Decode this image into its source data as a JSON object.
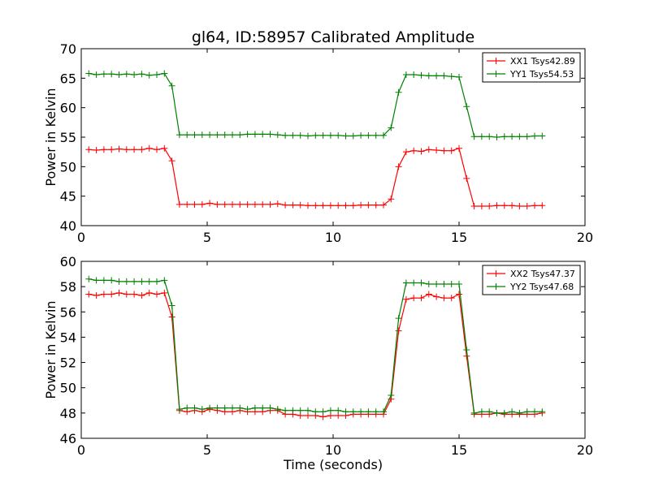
{
  "figure": {
    "title": "gl64, ID:58957 Calibrated Amplitude",
    "xlabel": "Time (seconds)"
  },
  "chart_data": [
    {
      "type": "line",
      "ylabel": "Power in Kelvin",
      "xlim": [
        0,
        20
      ],
      "ylim": [
        40,
        70
      ],
      "xticks": [
        0,
        5,
        10,
        15,
        20
      ],
      "yticks": [
        40,
        45,
        50,
        55,
        60,
        65,
        70
      ],
      "grid": false,
      "legend_position": "top-right",
      "x": [
        0.3,
        0.6,
        0.9,
        1.2,
        1.5,
        1.8,
        2.1,
        2.4,
        2.7,
        3.0,
        3.3,
        3.6,
        3.9,
        4.2,
        4.5,
        4.8,
        5.1,
        5.4,
        5.7,
        6.0,
        6.3,
        6.6,
        6.9,
        7.2,
        7.5,
        7.8,
        8.1,
        8.4,
        8.7,
        9.0,
        9.3,
        9.6,
        9.9,
        10.2,
        10.5,
        10.8,
        11.1,
        11.4,
        11.7,
        12.0,
        12.3,
        12.6,
        12.9,
        13.2,
        13.5,
        13.8,
        14.1,
        14.4,
        14.7,
        15.0,
        15.3,
        15.6,
        15.9,
        16.2,
        16.5,
        16.8,
        17.1,
        17.4,
        17.7,
        18.0,
        18.3
      ],
      "series": [
        {
          "name": "XX1 Tsys42.89",
          "color": "#ff0000",
          "values": [
            52.9,
            52.8,
            52.9,
            52.9,
            53.0,
            52.9,
            52.9,
            52.9,
            53.1,
            52.9,
            53.1,
            51.0,
            43.6,
            43.6,
            43.6,
            43.6,
            43.8,
            43.6,
            43.6,
            43.6,
            43.6,
            43.6,
            43.6,
            43.6,
            43.6,
            43.7,
            43.5,
            43.5,
            43.5,
            43.4,
            43.4,
            43.4,
            43.4,
            43.4,
            43.4,
            43.4,
            43.5,
            43.5,
            43.5,
            43.5,
            44.5,
            50.0,
            52.5,
            52.7,
            52.6,
            52.9,
            52.8,
            52.7,
            52.7,
            53.1,
            48.0,
            43.3,
            43.3,
            43.3,
            43.4,
            43.4,
            43.4,
            43.3,
            43.3,
            43.4,
            43.4
          ]
        },
        {
          "name": "YY1 Tsys54.53",
          "color": "#008000",
          "values": [
            65.8,
            65.6,
            65.7,
            65.7,
            65.6,
            65.7,
            65.6,
            65.7,
            65.5,
            65.6,
            65.8,
            63.7,
            55.4,
            55.4,
            55.4,
            55.4,
            55.4,
            55.4,
            55.4,
            55.4,
            55.4,
            55.5,
            55.5,
            55.5,
            55.5,
            55.4,
            55.3,
            55.3,
            55.3,
            55.2,
            55.3,
            55.3,
            55.3,
            55.3,
            55.2,
            55.2,
            55.3,
            55.3,
            55.3,
            55.3,
            56.6,
            62.6,
            65.6,
            65.6,
            65.5,
            65.4,
            65.4,
            65.4,
            65.3,
            65.2,
            60.2,
            55.1,
            55.1,
            55.1,
            55.0,
            55.1,
            55.1,
            55.1,
            55.1,
            55.2,
            55.2
          ]
        }
      ]
    },
    {
      "type": "line",
      "ylabel": "Power in Kelvin",
      "xlim": [
        0,
        20
      ],
      "ylim": [
        46,
        60
      ],
      "xticks": [
        0,
        5,
        10,
        15,
        20
      ],
      "yticks": [
        46,
        48,
        50,
        52,
        54,
        56,
        58,
        60
      ],
      "grid": false,
      "legend_position": "top-right",
      "x": [
        0.3,
        0.6,
        0.9,
        1.2,
        1.5,
        1.8,
        2.1,
        2.4,
        2.7,
        3.0,
        3.3,
        3.6,
        3.9,
        4.2,
        4.5,
        4.8,
        5.1,
        5.4,
        5.7,
        6.0,
        6.3,
        6.6,
        6.9,
        7.2,
        7.5,
        7.8,
        8.1,
        8.4,
        8.7,
        9.0,
        9.3,
        9.6,
        9.9,
        10.2,
        10.5,
        10.8,
        11.1,
        11.4,
        11.7,
        12.0,
        12.3,
        12.6,
        12.9,
        13.2,
        13.5,
        13.8,
        14.1,
        14.4,
        14.7,
        15.0,
        15.3,
        15.6,
        15.9,
        16.2,
        16.5,
        16.8,
        17.1,
        17.4,
        17.7,
        18.0,
        18.3
      ],
      "series": [
        {
          "name": "XX2 Tsys47.37",
          "color": "#ff0000",
          "values": [
            57.4,
            57.3,
            57.4,
            57.4,
            57.5,
            57.4,
            57.4,
            57.3,
            57.5,
            57.4,
            57.5,
            55.6,
            48.2,
            48.1,
            48.2,
            48.1,
            48.3,
            48.2,
            48.1,
            48.1,
            48.2,
            48.1,
            48.1,
            48.1,
            48.2,
            48.2,
            47.9,
            47.9,
            47.8,
            47.8,
            47.8,
            47.7,
            47.8,
            47.8,
            47.8,
            47.9,
            47.9,
            47.9,
            47.9,
            47.9,
            49.1,
            54.5,
            57.0,
            57.1,
            57.1,
            57.4,
            57.2,
            57.1,
            57.1,
            57.4,
            52.5,
            47.9,
            47.9,
            47.9,
            48.0,
            47.9,
            47.9,
            47.9,
            47.9,
            47.9,
            48.0
          ]
        },
        {
          "name": "YY2 Tsys47.68",
          "color": "#008000",
          "values": [
            58.6,
            58.5,
            58.5,
            58.5,
            58.4,
            58.4,
            58.4,
            58.4,
            58.4,
            58.4,
            58.5,
            56.5,
            48.3,
            48.4,
            48.4,
            48.3,
            48.4,
            48.4,
            48.4,
            48.4,
            48.4,
            48.3,
            48.4,
            48.4,
            48.4,
            48.3,
            48.2,
            48.2,
            48.2,
            48.2,
            48.1,
            48.1,
            48.2,
            48.2,
            48.1,
            48.1,
            48.1,
            48.1,
            48.1,
            48.1,
            49.4,
            55.5,
            58.3,
            58.3,
            58.3,
            58.2,
            58.2,
            58.2,
            58.2,
            58.2,
            53.0,
            48.0,
            48.1,
            48.1,
            48.0,
            48.0,
            48.1,
            48.0,
            48.1,
            48.1,
            48.1
          ]
        }
      ]
    }
  ]
}
